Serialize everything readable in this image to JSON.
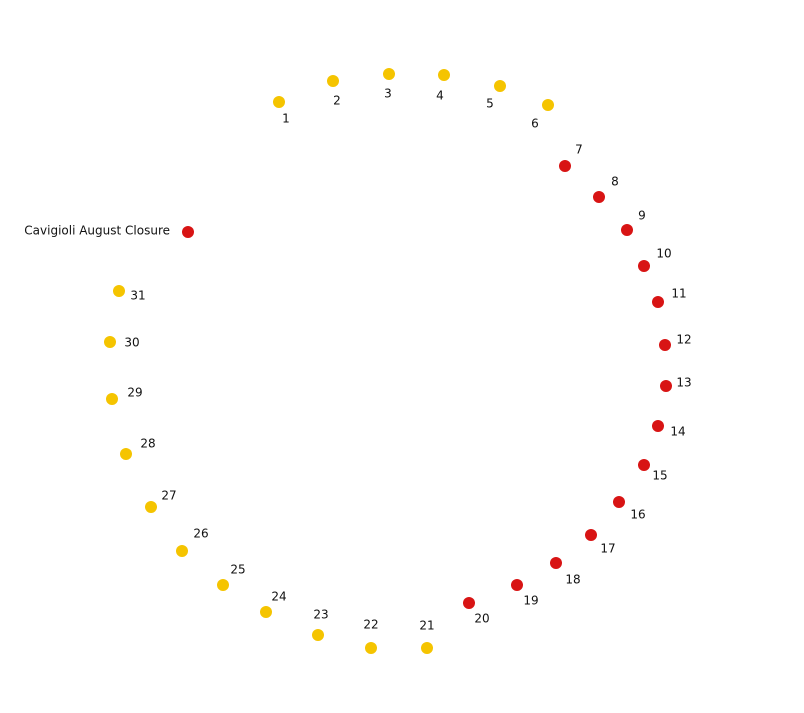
{
  "legend": {
    "label": "Cavigioli August Closure",
    "closed": true
  },
  "colors": {
    "open": "#f5c400",
    "closed": "#d81414"
  },
  "days": [
    {
      "label": "1",
      "closed": false
    },
    {
      "label": "2",
      "closed": false
    },
    {
      "label": "3",
      "closed": false
    },
    {
      "label": "4",
      "closed": false
    },
    {
      "label": "5",
      "closed": false
    },
    {
      "label": "6",
      "closed": false
    },
    {
      "label": "7",
      "closed": true
    },
    {
      "label": "8",
      "closed": true
    },
    {
      "label": "9",
      "closed": true
    },
    {
      "label": "10",
      "closed": true
    },
    {
      "label": "11",
      "closed": true
    },
    {
      "label": "12",
      "closed": true
    },
    {
      "label": "13",
      "closed": true
    },
    {
      "label": "14",
      "closed": true
    },
    {
      "label": "15",
      "closed": true
    },
    {
      "label": "16",
      "closed": true
    },
    {
      "label": "17",
      "closed": true
    },
    {
      "label": "18",
      "closed": true
    },
    {
      "label": "19",
      "closed": true
    },
    {
      "label": "20",
      "closed": true
    },
    {
      "label": "21",
      "closed": false
    },
    {
      "label": "22",
      "closed": false
    },
    {
      "label": "23",
      "closed": false
    },
    {
      "label": "24",
      "closed": false
    },
    {
      "label": "25",
      "closed": false
    },
    {
      "label": "26",
      "closed": false
    },
    {
      "label": "27",
      "closed": false
    },
    {
      "label": "28",
      "closed": false
    },
    {
      "label": "29",
      "closed": false
    },
    {
      "label": "30",
      "closed": false
    },
    {
      "label": "31",
      "closed": false
    }
  ]
}
